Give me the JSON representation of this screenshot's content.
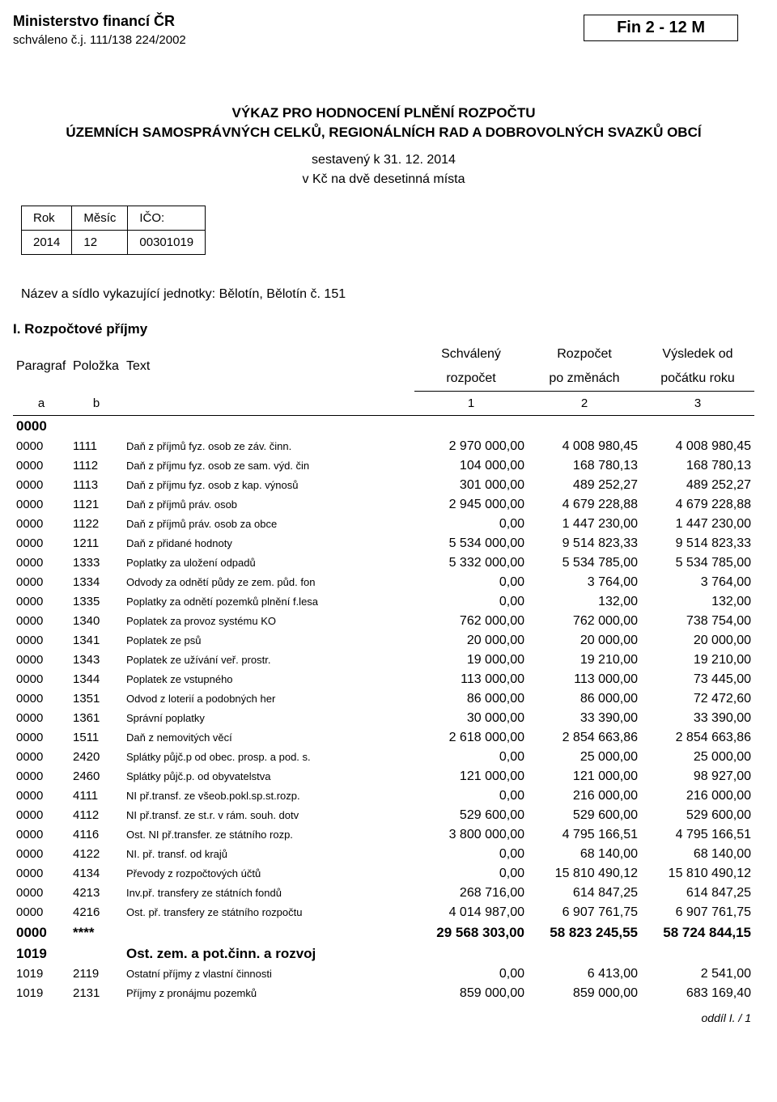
{
  "header": {
    "ministry": "Ministerstvo financí ČR",
    "approved": "schváleno č.j. 111/138 224/2002",
    "form_code": "Fin 2 - 12 M"
  },
  "title": {
    "line1": "VÝKAZ PRO HODNOCENÍ PLNĚNÍ ROZPOČTU",
    "line2": "ÚZEMNÍCH SAMOSPRÁVNÝCH CELKŮ, REGIONÁLNÍCH RAD A DOBROVOLNÝCH SVAZKŮ OBCÍ",
    "compiled": "sestavený k  31. 12. 2014",
    "currency": "v Kč na dvě desetinná místa"
  },
  "period": {
    "h_year": "Rok",
    "h_month": "Měsíc",
    "h_ico": "IČO:",
    "year": "2014",
    "month": "12",
    "ico": "00301019"
  },
  "entity": {
    "label": "Název a sídlo vykazující jednotky:",
    "value": "Bělotín, Bělotín č. 151"
  },
  "section": {
    "title": "I. Rozpočtové příjmy",
    "headers": {
      "par": "Paragraf",
      "pol": "Položka",
      "txt": "Text",
      "c1a": "Schválený",
      "c1b": "rozpočet",
      "c2a": "Rozpočet",
      "c2b": "po změnách",
      "c3a": "Výsledek od",
      "c3b": "počátku roku",
      "la": "a",
      "lb": "b",
      "l1": "1",
      "l2": "2",
      "l3": "3"
    }
  },
  "group0": {
    "par": "0000",
    "label": ""
  },
  "rows": [
    {
      "par": "0000",
      "pol": "1111",
      "txt": "Daň z příjmů fyz. osob ze záv. činn.",
      "v1": "2 970 000,00",
      "v2": "4 008 980,45",
      "v3": "4 008 980,45"
    },
    {
      "par": "0000",
      "pol": "1112",
      "txt": "Daň z příjmu fyz. osob ze sam. výd. čin",
      "v1": "104 000,00",
      "v2": "168 780,13",
      "v3": "168 780,13"
    },
    {
      "par": "0000",
      "pol": "1113",
      "txt": "Daň z příjmu fyz. osob z kap. výnosů",
      "v1": "301 000,00",
      "v2": "489 252,27",
      "v3": "489 252,27"
    },
    {
      "par": "0000",
      "pol": "1121",
      "txt": "Daň z příjmů práv. osob",
      "v1": "2 945 000,00",
      "v2": "4 679 228,88",
      "v3": "4 679 228,88"
    },
    {
      "par": "0000",
      "pol": "1122",
      "txt": "Daň z příjmů práv. osob za obce",
      "v1": "0,00",
      "v2": "1 447 230,00",
      "v3": "1 447 230,00"
    },
    {
      "par": "0000",
      "pol": "1211",
      "txt": "Daň z přidané hodnoty",
      "v1": "5 534 000,00",
      "v2": "9 514 823,33",
      "v3": "9 514 823,33"
    },
    {
      "par": "0000",
      "pol": "1333",
      "txt": "Poplatky za uložení odpadů",
      "v1": "5 332 000,00",
      "v2": "5 534 785,00",
      "v3": "5 534 785,00"
    },
    {
      "par": "0000",
      "pol": "1334",
      "txt": "Odvody za odnětí půdy ze zem. půd. fon",
      "v1": "0,00",
      "v2": "3 764,00",
      "v3": "3 764,00"
    },
    {
      "par": "0000",
      "pol": "1335",
      "txt": "Poplatky za odnětí pozemků plnění f.lesa",
      "v1": "0,00",
      "v2": "132,00",
      "v3": "132,00"
    },
    {
      "par": "0000",
      "pol": "1340",
      "txt": "Poplatek za provoz systému KO",
      "v1": "762 000,00",
      "v2": "762 000,00",
      "v3": "738 754,00"
    },
    {
      "par": "0000",
      "pol": "1341",
      "txt": "Poplatek ze psů",
      "v1": "20 000,00",
      "v2": "20 000,00",
      "v3": "20 000,00"
    },
    {
      "par": "0000",
      "pol": "1343",
      "txt": "Poplatek ze užívání veř. prostr.",
      "v1": "19 000,00",
      "v2": "19 210,00",
      "v3": "19 210,00"
    },
    {
      "par": "0000",
      "pol": "1344",
      "txt": "Poplatek ze vstupného",
      "v1": "113 000,00",
      "v2": "113 000,00",
      "v3": "73 445,00"
    },
    {
      "par": "0000",
      "pol": "1351",
      "txt": "Odvod z loterií a podobných her",
      "v1": "86 000,00",
      "v2": "86 000,00",
      "v3": "72 472,60"
    },
    {
      "par": "0000",
      "pol": "1361",
      "txt": "Správní poplatky",
      "v1": "30 000,00",
      "v2": "33 390,00",
      "v3": "33 390,00"
    },
    {
      "par": "0000",
      "pol": "1511",
      "txt": "Daň z nemovitých věcí",
      "v1": "2 618 000,00",
      "v2": "2 854 663,86",
      "v3": "2 854 663,86"
    },
    {
      "par": "0000",
      "pol": "2420",
      "txt": "Splátky půjč.p od obec. prosp. a pod. s.",
      "v1": "0,00",
      "v2": "25 000,00",
      "v3": "25 000,00"
    },
    {
      "par": "0000",
      "pol": "2460",
      "txt": "Splátky půjč.p. od obyvatelstva",
      "v1": "121 000,00",
      "v2": "121 000,00",
      "v3": "98 927,00"
    },
    {
      "par": "0000",
      "pol": "4111",
      "txt": "NI př.transf. ze všeob.pokl.sp.st.rozp.",
      "v1": "0,00",
      "v2": "216 000,00",
      "v3": "216 000,00"
    },
    {
      "par": "0000",
      "pol": "4112",
      "txt": "NI př.transf. ze st.r. v rám. souh. dotv",
      "v1": "529 600,00",
      "v2": "529 600,00",
      "v3": "529 600,00"
    },
    {
      "par": "0000",
      "pol": "4116",
      "txt": "Ost. NI př.transfer. ze státního rozp.",
      "v1": "3 800 000,00",
      "v2": "4 795 166,51",
      "v3": "4 795 166,51"
    },
    {
      "par": "0000",
      "pol": "4122",
      "txt": "NI. př. transf. od krajů",
      "v1": "0,00",
      "v2": "68 140,00",
      "v3": "68 140,00"
    },
    {
      "par": "0000",
      "pol": "4134",
      "txt": "Převody z rozpočtových účtů",
      "v1": "0,00",
      "v2": "15 810 490,12",
      "v3": "15 810 490,12"
    },
    {
      "par": "0000",
      "pol": "4213",
      "txt": "Inv.př. transfery ze státních fondů",
      "v1": "268 716,00",
      "v2": "614 847,25",
      "v3": "614 847,25"
    },
    {
      "par": "0000",
      "pol": "4216",
      "txt": "Ost. př. transfery ze státního rozpočtu",
      "v1": "4 014 987,00",
      "v2": "6 907 761,75",
      "v3": "6 907 761,75"
    }
  ],
  "total0": {
    "par": "0000",
    "pol": "****",
    "v1": "29 568 303,00",
    "v2": "58 823 245,55",
    "v3": "58 724 844,15"
  },
  "group1": {
    "par": "1019",
    "label": "Ost. zem. a pot.činn. a rozvoj"
  },
  "rows1": [
    {
      "par": "1019",
      "pol": "2119",
      "txt": "Ostatní příjmy z vlastní činnosti",
      "v1": "0,00",
      "v2": "6 413,00",
      "v3": "2 541,00"
    },
    {
      "par": "1019",
      "pol": "2131",
      "txt": "Příjmy z pronájmu pozemků",
      "v1": "859 000,00",
      "v2": "859 000,00",
      "v3": "683 169,40"
    }
  ],
  "footer": "oddíl I.   /   1"
}
